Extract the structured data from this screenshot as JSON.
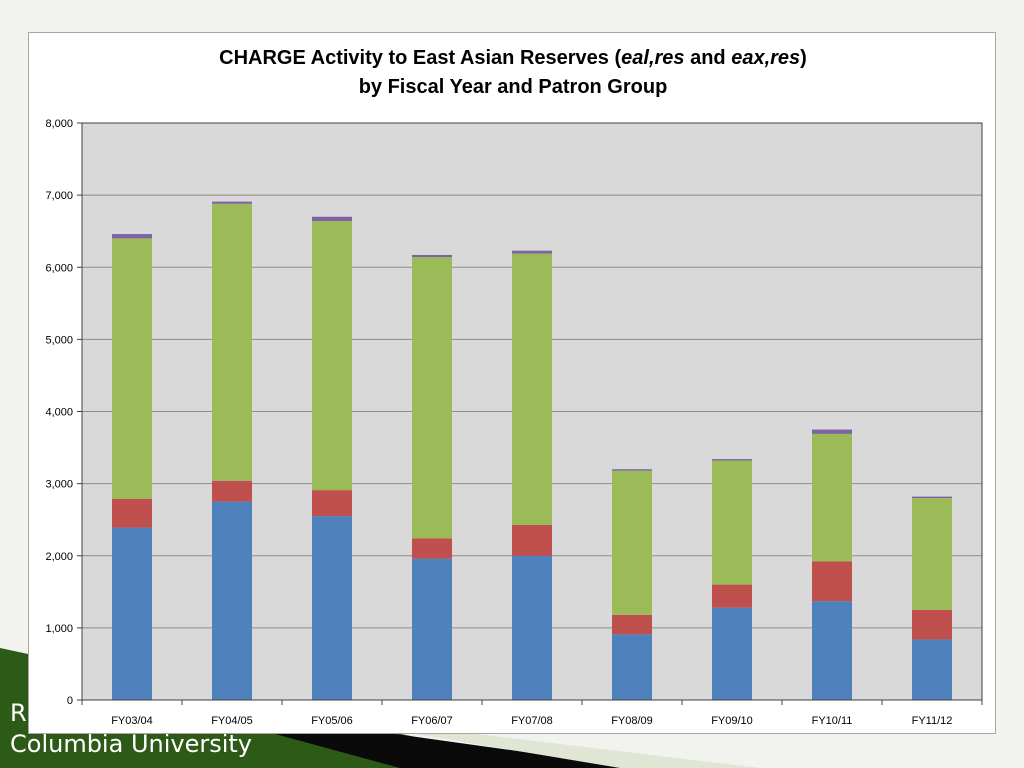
{
  "chart_data": {
    "type": "bar",
    "stacked": true,
    "title_parts": [
      {
        "text": "CHARGE Activity to East Asian Reserves (",
        "italic": false
      },
      {
        "text": "eal,res",
        "italic": true
      },
      {
        "text": " and ",
        "italic": false
      },
      {
        "text": "eax,res",
        "italic": true
      },
      {
        "text": ")",
        "italic": false
      }
    ],
    "subtitle": "by Fiscal Year and Patron Group",
    "categories": [
      "FY03/04",
      "FY04/05",
      "FY05/06",
      "FY06/07",
      "FY07/08",
      "FY08/09",
      "FY09/10",
      "FY10/11",
      "FY11/12"
    ],
    "series": [
      {
        "color": "#4f81bd",
        "values": [
          2390,
          2750,
          2550,
          1960,
          2000,
          910,
          1280,
          1370,
          840
        ]
      },
      {
        "color": "#c0504d",
        "values": [
          400,
          290,
          360,
          280,
          430,
          270,
          320,
          550,
          410
        ]
      },
      {
        "color": "#9bbb59",
        "values": [
          3610,
          3840,
          3730,
          3900,
          3760,
          2000,
          1720,
          1770,
          1550
        ]
      },
      {
        "color": "#8064a2",
        "values": [
          60,
          30,
          60,
          30,
          40,
          20,
          20,
          60,
          20
        ]
      }
    ],
    "yticks": [
      "0",
      "1,000",
      "2,000",
      "3,000",
      "4,000",
      "5,000",
      "6,000",
      "7,000",
      "8,000"
    ],
    "ylim": [
      0,
      8000
    ],
    "grid": true,
    "plot_background": "#d9d9d9",
    "legend": "none"
  },
  "footer": {
    "initial": "R",
    "org": "Columbia University"
  },
  "theme": {
    "slide_background": "#f2f2ee",
    "deco_green": "#2e5a17",
    "deco_black": "#0a0a0a"
  }
}
